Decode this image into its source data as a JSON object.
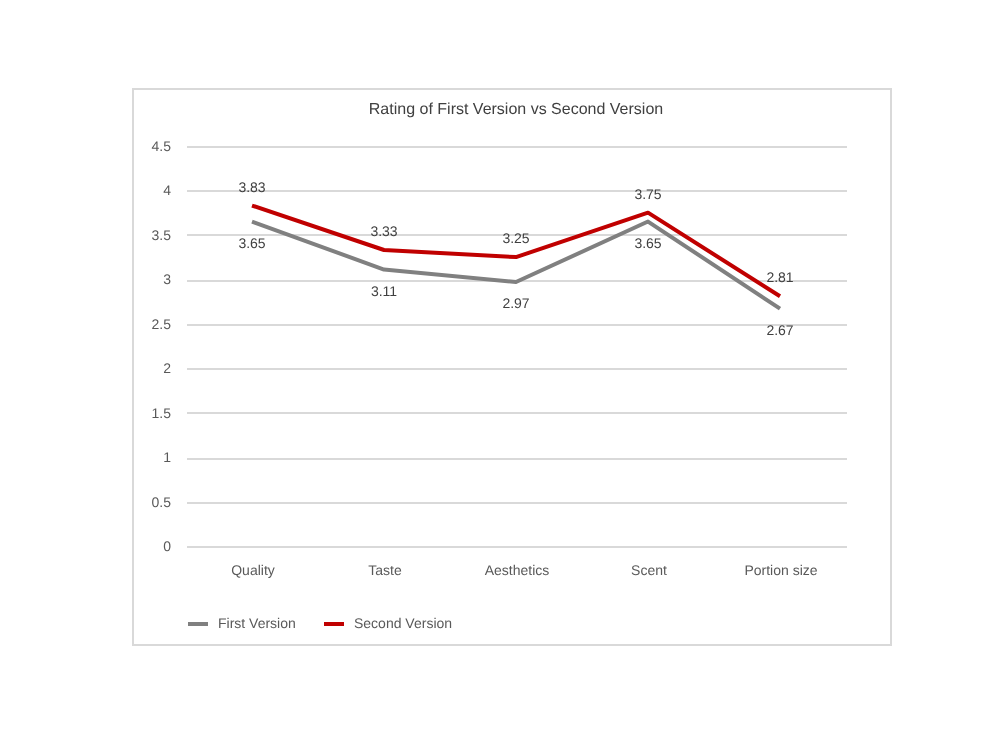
{
  "chart_data": {
    "type": "line",
    "title": "Rating of First Version vs Second Version",
    "categories": [
      "Quality",
      "Taste",
      "Aesthetics",
      "Scent",
      "Portion size"
    ],
    "series": [
      {
        "name": "First Version",
        "color": "#808080",
        "values": [
          3.65,
          3.11,
          2.97,
          3.65,
          2.67
        ]
      },
      {
        "name": "Second Version",
        "color": "#c00000",
        "values": [
          3.83,
          3.33,
          3.25,
          3.75,
          2.81
        ]
      }
    ],
    "ylim": [
      0,
      4.5
    ],
    "yticks": [
      0,
      0.5,
      1,
      1.5,
      2,
      2.5,
      3,
      3.5,
      4,
      4.5
    ],
    "grid": "y",
    "legend": "bottom",
    "data_labels": true
  }
}
